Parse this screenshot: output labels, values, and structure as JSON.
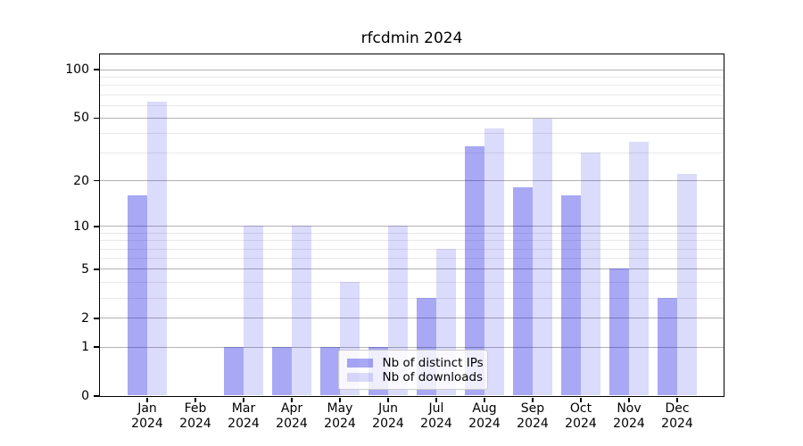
{
  "page": {
    "background": "#ffffff"
  },
  "chart_data": {
    "type": "bar",
    "title": "rfcdmin 2024",
    "year": "2024",
    "months": [
      "Jan",
      "Feb",
      "Mar",
      "Apr",
      "May",
      "Jun",
      "Jul",
      "Aug",
      "Sep",
      "Oct",
      "Nov",
      "Dec"
    ],
    "categories": [
      "Jan 2024",
      "Feb 2024",
      "Mar 2024",
      "Apr 2024",
      "May 2024",
      "Jun 2024",
      "Jul 2024",
      "Aug 2024",
      "Sep 2024",
      "Oct 2024",
      "Nov 2024",
      "Dec 2024"
    ],
    "series": [
      {
        "name": "Nb of distinct IPs",
        "color": "#a8a8f4",
        "color_rgba": "rgba(0,0,224,0.34)",
        "values": [
          16,
          0,
          1,
          1,
          1,
          1,
          3,
          33,
          18,
          16,
          5,
          3
        ]
      },
      {
        "name": "Nb of downloads",
        "color": "#dcdcfb",
        "color_rgba": "rgba(0,0,224,0.14)",
        "values": [
          63,
          0,
          10,
          10,
          4,
          10,
          7,
          43,
          49,
          30,
          35,
          22
        ]
      }
    ],
    "yscale": "log(1+v)",
    "ylim": [
      0,
      124
    ],
    "y_tick_values": [
      0,
      1,
      2,
      5,
      10,
      20,
      50,
      100
    ],
    "y_minor_gridline_values": [
      3,
      4,
      6,
      7,
      8,
      9,
      30,
      40,
      60,
      70,
      80,
      90
    ],
    "grid": true,
    "legend_position": "lower center",
    "xlabel": "",
    "ylabel": ""
  },
  "colors": {
    "major_gridline": "#b3b3b3",
    "minor_gridline": "#e8e8e8",
    "spine": "#000000",
    "text": "#000000",
    "legend_border": "#cccccc",
    "legend_background": "rgba(255,255,255,0.8)"
  }
}
